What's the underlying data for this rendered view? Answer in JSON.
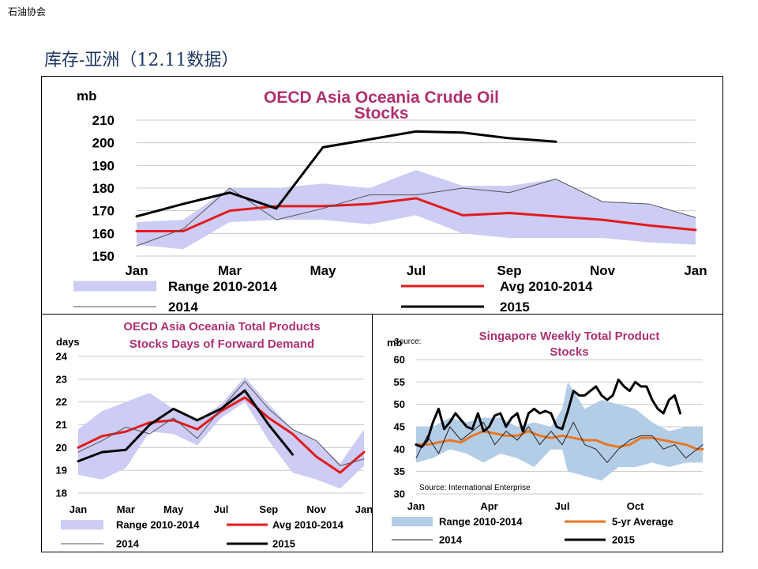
{
  "header": {
    "corner_label": "石油协会",
    "title": "库存-亚洲（12.11数据）"
  },
  "chart_data": [
    {
      "type": "line",
      "title": [
        "OECD Asia Oceania Crude Oil",
        "Stocks"
      ],
      "ylabel": "mb",
      "ylim": [
        150,
        210
      ],
      "yticks": [
        150,
        160,
        170,
        180,
        190,
        200,
        210
      ],
      "xlim": [
        0,
        12
      ],
      "xticks": [
        {
          "x": 0,
          "label": "Jan"
        },
        {
          "x": 2,
          "label": "Mar"
        },
        {
          "x": 4,
          "label": "May"
        },
        {
          "x": 6,
          "label": "Jul"
        },
        {
          "x": 8,
          "label": "Sep"
        },
        {
          "x": 10,
          "label": "Nov"
        },
        {
          "x": 12,
          "label": "Jan"
        }
      ],
      "grid": true,
      "range_band": {
        "name": "Range 2010-2014",
        "color": "#ccccf5",
        "x": [
          0,
          1,
          2,
          3,
          4,
          5,
          6,
          7,
          8,
          9,
          10,
          11,
          12
        ],
        "low": [
          155,
          153,
          165,
          166,
          166,
          164,
          168,
          160,
          158,
          158,
          158,
          156,
          155
        ],
        "high": [
          165,
          166,
          180,
          180,
          182,
          180,
          188,
          181,
          181,
          184,
          174,
          173,
          167
        ]
      },
      "series": [
        {
          "name": "Avg 2010-2014",
          "color": "#e31a1c",
          "width": 3,
          "x": [
            0,
            1,
            2,
            3,
            4,
            5,
            6,
            7,
            8,
            9,
            10,
            11,
            12
          ],
          "y": [
            161,
            161,
            170,
            172,
            172,
            173,
            175.5,
            168,
            169,
            167.5,
            166,
            163.5,
            161.5
          ]
        },
        {
          "name": "2014",
          "color": "#555555",
          "width": 1,
          "x": [
            0,
            1,
            2,
            3,
            4,
            5,
            6,
            7,
            8,
            9,
            10,
            11,
            12
          ],
          "y": [
            154.5,
            162,
            180,
            166,
            171,
            177,
            177,
            180,
            178,
            184,
            174,
            173,
            167
          ]
        },
        {
          "name": "2015",
          "color": "#000000",
          "width": 3,
          "x": [
            0,
            1,
            2,
            3,
            4,
            5,
            6,
            7,
            8,
            9
          ],
          "y": [
            167.5,
            173,
            178,
            171,
            198,
            201.5,
            205,
            204.5,
            202,
            200.5
          ]
        }
      ],
      "legend": {
        "placement": "bottom",
        "items": [
          "Range 2010-2014",
          "Avg 2010-2014",
          "2014",
          "2015"
        ]
      }
    },
    {
      "type": "line",
      "title": [
        "OECD Asia Oceania Total Products",
        "Stocks  Days of Forward Demand"
      ],
      "ylabel": "days",
      "ylim": [
        18,
        24
      ],
      "yticks": [
        18,
        19,
        20,
        21,
        22,
        23,
        24
      ],
      "xlim": [
        0,
        12
      ],
      "xticks": [
        {
          "x": 0,
          "label": "Jan"
        },
        {
          "x": 2,
          "label": "Mar"
        },
        {
          "x": 4,
          "label": "May"
        },
        {
          "x": 6,
          "label": "Jul"
        },
        {
          "x": 8,
          "label": "Sep"
        },
        {
          "x": 10,
          "label": "Nov"
        },
        {
          "x": 12,
          "label": "Jan"
        }
      ],
      "grid": true,
      "range_band": {
        "name": "Range 2010-2014",
        "color": "#ccccf5",
        "x": [
          0,
          1,
          2,
          3,
          4,
          5,
          6,
          7,
          8,
          9,
          10,
          11,
          12
        ],
        "low": [
          18.8,
          18.6,
          19.1,
          20.7,
          20.6,
          20.1,
          21.3,
          22.0,
          20.3,
          18.9,
          18.6,
          18.2,
          19.2
        ],
        "high": [
          20.8,
          21.6,
          22.0,
          22.4,
          21.7,
          21.2,
          21.9,
          23.1,
          21.9,
          20.8,
          20.3,
          19.3,
          20.8
        ]
      },
      "series": [
        {
          "name": "Avg 2010-2014",
          "color": "#e31a1c",
          "width": 3,
          "x": [
            0,
            1,
            2,
            3,
            4,
            5,
            6,
            7,
            8,
            9,
            10,
            11,
            12
          ],
          "y": [
            20.0,
            20.5,
            20.7,
            21.1,
            21.2,
            20.8,
            21.6,
            22.2,
            21.3,
            20.6,
            19.6,
            18.9,
            19.8
          ]
        },
        {
          "name": "2014",
          "color": "#555555",
          "width": 1,
          "x": [
            0,
            1,
            2,
            3,
            4,
            5,
            6,
            7,
            8,
            9,
            10,
            11,
            12
          ],
          "y": [
            19.8,
            20.3,
            20.9,
            20.6,
            21.3,
            20.4,
            21.7,
            22.9,
            21.7,
            20.8,
            20.3,
            19.2,
            19.5
          ]
        },
        {
          "name": "2015",
          "color": "#000000",
          "width": 3,
          "x": [
            0,
            1,
            2,
            3,
            4,
            5,
            6,
            7,
            8,
            9
          ],
          "y": [
            19.4,
            19.8,
            19.9,
            21.0,
            21.7,
            21.2,
            21.7,
            22.5,
            21.0,
            19.7
          ]
        }
      ],
      "legend": {
        "placement": "bottom",
        "items": [
          "Range 2010-2014",
          "Avg 2010-2014",
          "2014",
          "2015"
        ]
      }
    },
    {
      "type": "line",
      "title": [
        "Singapore Weekly Total Product",
        "Stocks"
      ],
      "ylabel": "mb",
      "source_top": "Source:",
      "source_note": "Source: International Enterprise",
      "ylim": [
        30,
        60
      ],
      "yticks": [
        30,
        35,
        40,
        45,
        50,
        55,
        60
      ],
      "xlim": [
        1,
        52
      ],
      "xticks": [
        {
          "x": 1,
          "label": "Jan"
        },
        {
          "x": 14,
          "label": "Apr"
        },
        {
          "x": 27,
          "label": "Jul"
        },
        {
          "x": 40,
          "label": "Oct"
        }
      ],
      "grid": true,
      "range_band": {
        "name": "Range 2010-2014",
        "color": "#b4cde6",
        "x": [
          1,
          4,
          7,
          10,
          13,
          16,
          19,
          22,
          25,
          27,
          28,
          31,
          34,
          37,
          40,
          43,
          46,
          49,
          52
        ],
        "low": [
          37,
          38,
          40,
          39,
          37,
          39,
          38,
          36,
          40,
          40,
          35,
          34,
          33,
          36,
          36,
          37,
          36,
          37,
          37
        ],
        "high": [
          45,
          45,
          47,
          46,
          47,
          47,
          45,
          46,
          45,
          49,
          55,
          49,
          51,
          50,
          49,
          46,
          44,
          45,
          45
        ]
      },
      "series": [
        {
          "name": "5-yr Average",
          "color": "#e87722",
          "width": 3,
          "x": [
            1,
            3,
            5,
            7,
            9,
            11,
            13,
            15,
            17,
            19,
            21,
            23,
            25,
            27,
            29,
            31,
            33,
            35,
            37,
            39,
            41,
            43,
            45,
            47,
            49,
            51,
            52
          ],
          "y": [
            41,
            41,
            41.5,
            42,
            41.5,
            43,
            44,
            43.5,
            43,
            43,
            44,
            43,
            42.5,
            43,
            42.5,
            42,
            42,
            41,
            40.5,
            41,
            42.5,
            42.5,
            42,
            41.5,
            41,
            40,
            40
          ]
        },
        {
          "name": "2014",
          "color": "#222222",
          "width": 1,
          "x": [
            1,
            3,
            5,
            7,
            9,
            11,
            13,
            15,
            17,
            19,
            21,
            23,
            25,
            27,
            29,
            31,
            33,
            35,
            37,
            39,
            41,
            43,
            45,
            47,
            49,
            51,
            52
          ],
          "y": [
            38,
            43,
            39,
            45,
            42,
            44,
            46,
            41,
            44,
            42,
            45,
            41,
            44,
            41,
            46,
            41,
            40,
            37,
            40,
            42,
            43,
            43,
            40,
            41,
            38,
            40,
            41
          ]
        },
        {
          "name": "2015",
          "color": "#000000",
          "width": 3,
          "x": [
            1,
            2,
            3,
            4,
            5,
            6,
            7,
            8,
            9,
            10,
            11,
            12,
            13,
            14,
            15,
            16,
            17,
            18,
            19,
            20,
            21,
            22,
            23,
            24,
            25,
            26,
            27,
            28,
            29,
            30,
            31,
            32,
            33,
            34,
            35,
            36,
            37,
            38,
            39,
            40,
            41,
            42,
            43,
            44,
            45,
            46,
            47,
            48
          ],
          "y": [
            41,
            40.5,
            42,
            46,
            49,
            44.5,
            46,
            48,
            46.5,
            45,
            44.5,
            48,
            44,
            45,
            47.5,
            48,
            45,
            47,
            48,
            44,
            48,
            49,
            48,
            48.5,
            48,
            45,
            44.5,
            48.5,
            53,
            52,
            52,
            53,
            54,
            52,
            51,
            52,
            55.5,
            54,
            53,
            55,
            54,
            54,
            51,
            49,
            48,
            51,
            52,
            48
          ]
        }
      ],
      "legend": {
        "placement": "bottom",
        "items": [
          "Range 2010-2014",
          "5-yr Average",
          "2014",
          "2015"
        ]
      }
    }
  ]
}
